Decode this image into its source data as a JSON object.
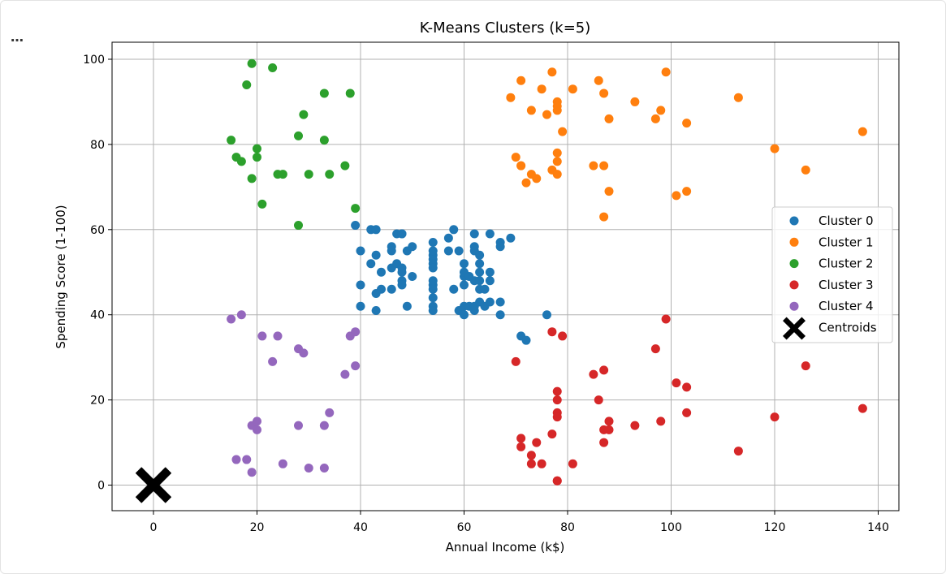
{
  "menu": {
    "more_label": "…"
  },
  "chart_data": {
    "type": "scatter",
    "title": "K-Means Clusters (k=5)",
    "xlabel": "Annual Income (k$)",
    "ylabel": "Spending Score (1-100)",
    "xlim": [
      -8,
      144
    ],
    "ylim": [
      -6,
      104
    ],
    "xticks": [
      0,
      20,
      40,
      60,
      80,
      100,
      120,
      140
    ],
    "yticks": [
      0,
      20,
      40,
      60,
      80,
      100
    ],
    "grid": true,
    "legend_position": "right",
    "series": [
      {
        "name": "Cluster 0",
        "color": "#1f77b4",
        "points": [
          [
            39,
            61
          ],
          [
            40,
            55
          ],
          [
            40,
            47
          ],
          [
            40,
            42
          ],
          [
            42,
            52
          ],
          [
            42,
            60
          ],
          [
            43,
            60
          ],
          [
            43,
            54
          ],
          [
            43,
            45
          ],
          [
            43,
            41
          ],
          [
            44,
            50
          ],
          [
            44,
            46
          ],
          [
            46,
            51
          ],
          [
            46,
            46
          ],
          [
            46,
            56
          ],
          [
            46,
            55
          ],
          [
            47,
            52
          ],
          [
            47,
            59
          ],
          [
            48,
            51
          ],
          [
            48,
            59
          ],
          [
            48,
            50
          ],
          [
            48,
            48
          ],
          [
            48,
            59
          ],
          [
            48,
            47
          ],
          [
            49,
            55
          ],
          [
            49,
            42
          ],
          [
            50,
            49
          ],
          [
            50,
            56
          ],
          [
            54,
            47
          ],
          [
            54,
            54
          ],
          [
            54,
            53
          ],
          [
            54,
            48
          ],
          [
            54,
            52
          ],
          [
            54,
            42
          ],
          [
            54,
            51
          ],
          [
            54,
            55
          ],
          [
            54,
            41
          ],
          [
            54,
            44
          ],
          [
            54,
            57
          ],
          [
            54,
            46
          ],
          [
            57,
            58
          ],
          [
            57,
            55
          ],
          [
            58,
            60
          ],
          [
            58,
            46
          ],
          [
            59,
            55
          ],
          [
            59,
            41
          ],
          [
            60,
            49
          ],
          [
            60,
            40
          ],
          [
            60,
            42
          ],
          [
            60,
            52
          ],
          [
            60,
            47
          ],
          [
            60,
            50
          ],
          [
            61,
            42
          ],
          [
            61,
            49
          ],
          [
            62,
            41
          ],
          [
            62,
            48
          ],
          [
            62,
            59
          ],
          [
            62,
            55
          ],
          [
            62,
            56
          ],
          [
            62,
            42
          ],
          [
            63,
            50
          ],
          [
            63,
            46
          ],
          [
            63,
            43
          ],
          [
            63,
            48
          ],
          [
            63,
            52
          ],
          [
            63,
            54
          ],
          [
            64,
            42
          ],
          [
            64,
            46
          ],
          [
            65,
            48
          ],
          [
            65,
            50
          ],
          [
            65,
            43
          ],
          [
            65,
            59
          ],
          [
            67,
            43
          ],
          [
            67,
            57
          ],
          [
            67,
            56
          ],
          [
            67,
            40
          ],
          [
            69,
            58
          ],
          [
            71,
            35
          ],
          [
            72,
            34
          ],
          [
            76,
            40
          ]
        ]
      },
      {
        "name": "Cluster 1",
        "color": "#ff7f0e",
        "points": [
          [
            69,
            91
          ],
          [
            70,
            77
          ],
          [
            71,
            95
          ],
          [
            71,
            75
          ],
          [
            71,
            75
          ],
          [
            72,
            71
          ],
          [
            73,
            88
          ],
          [
            73,
            73
          ],
          [
            74,
            72
          ],
          [
            75,
            93
          ],
          [
            76,
            87
          ],
          [
            77,
            97
          ],
          [
            77,
            74
          ],
          [
            78,
            90
          ],
          [
            78,
            88
          ],
          [
            78,
            76
          ],
          [
            78,
            89
          ],
          [
            78,
            78
          ],
          [
            78,
            73
          ],
          [
            79,
            83
          ],
          [
            81,
            93
          ],
          [
            85,
            75
          ],
          [
            86,
            95
          ],
          [
            87,
            63
          ],
          [
            87,
            75
          ],
          [
            87,
            92
          ],
          [
            88,
            86
          ],
          [
            88,
            69
          ],
          [
            93,
            90
          ],
          [
            97,
            86
          ],
          [
            98,
            88
          ],
          [
            99,
            97
          ],
          [
            101,
            68
          ],
          [
            103,
            85
          ],
          [
            103,
            69
          ],
          [
            113,
            91
          ],
          [
            120,
            79
          ],
          [
            126,
            74
          ],
          [
            137,
            83
          ]
        ]
      },
      {
        "name": "Cluster 2",
        "color": "#2ca02c",
        "points": [
          [
            15,
            81
          ],
          [
            16,
            77
          ],
          [
            17,
            76
          ],
          [
            18,
            94
          ],
          [
            19,
            72
          ],
          [
            19,
            99
          ],
          [
            20,
            77
          ],
          [
            20,
            79
          ],
          [
            21,
            66
          ],
          [
            23,
            98
          ],
          [
            24,
            73
          ],
          [
            25,
            73
          ],
          [
            28,
            82
          ],
          [
            28,
            61
          ],
          [
            29,
            87
          ],
          [
            30,
            73
          ],
          [
            33,
            92
          ],
          [
            33,
            81
          ],
          [
            34,
            73
          ],
          [
            37,
            75
          ],
          [
            38,
            92
          ],
          [
            39,
            65
          ]
        ]
      },
      {
        "name": "Cluster 3",
        "color": "#d62728",
        "points": [
          [
            70,
            29
          ],
          [
            71,
            11
          ],
          [
            71,
            9
          ],
          [
            73,
            5
          ],
          [
            73,
            7
          ],
          [
            74,
            10
          ],
          [
            75,
            5
          ],
          [
            77,
            12
          ],
          [
            77,
            36
          ],
          [
            78,
            22
          ],
          [
            78,
            17
          ],
          [
            78,
            20
          ],
          [
            78,
            16
          ],
          [
            78,
            1
          ],
          [
            78,
            1
          ],
          [
            79,
            35
          ],
          [
            81,
            5
          ],
          [
            85,
            26
          ],
          [
            86,
            20
          ],
          [
            87,
            27
          ],
          [
            87,
            13
          ],
          [
            87,
            10
          ],
          [
            88,
            13
          ],
          [
            88,
            15
          ],
          [
            93,
            14
          ],
          [
            97,
            32
          ],
          [
            98,
            15
          ],
          [
            99,
            39
          ],
          [
            101,
            24
          ],
          [
            103,
            17
          ],
          [
            103,
            23
          ],
          [
            113,
            8
          ],
          [
            120,
            16
          ],
          [
            126,
            28
          ],
          [
            137,
            18
          ]
        ]
      },
      {
        "name": "Cluster 4",
        "color": "#9467bd",
        "points": [
          [
            15,
            39
          ],
          [
            16,
            6
          ],
          [
            17,
            40
          ],
          [
            18,
            6
          ],
          [
            19,
            3
          ],
          [
            19,
            14
          ],
          [
            20,
            15
          ],
          [
            20,
            13
          ],
          [
            21,
            35
          ],
          [
            23,
            29
          ],
          [
            24,
            35
          ],
          [
            25,
            5
          ],
          [
            28,
            14
          ],
          [
            28,
            32
          ],
          [
            29,
            31
          ],
          [
            30,
            4
          ],
          [
            33,
            4
          ],
          [
            33,
            14
          ],
          [
            34,
            17
          ],
          [
            37,
            26
          ],
          [
            38,
            35
          ],
          [
            39,
            36
          ],
          [
            39,
            28
          ]
        ]
      },
      {
        "name": "Centroids",
        "color": "#000000",
        "marker": "X",
        "points": [
          [
            0,
            0
          ],
          [
            0,
            0
          ],
          [
            0,
            0
          ],
          [
            0,
            0
          ],
          [
            0,
            0
          ]
        ]
      }
    ]
  }
}
